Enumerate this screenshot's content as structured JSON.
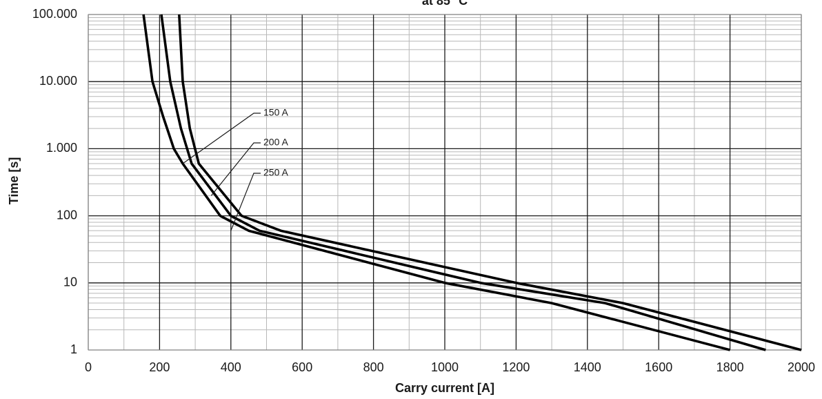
{
  "chart_data": {
    "type": "line",
    "title": "at 85 °C",
    "xlabel": "Carry current [A]",
    "ylabel": "Time [s]",
    "xlim": [
      0,
      2000
    ],
    "ylim": [
      1,
      100000
    ],
    "yscale": "log",
    "x_ticks": [
      "0",
      "200",
      "400",
      "600",
      "800",
      "1000",
      "1200",
      "1400",
      "1600",
      "1800",
      "2000"
    ],
    "y_ticks": [
      {
        "value": 1,
        "label": "1"
      },
      {
        "value": 10,
        "label": "10"
      },
      {
        "value": 100,
        "label": "100"
      },
      {
        "value": 1000,
        "label": "1.000"
      },
      {
        "value": 10000,
        "label": "10.000"
      },
      {
        "value": 100000,
        "label": "100.000"
      }
    ],
    "grid": true,
    "series": [
      {
        "name": "150 A",
        "x": [
          155,
          180,
          210,
          240,
          265,
          370,
          450,
          1000,
          1300,
          1800
        ],
        "y": [
          100000,
          10000,
          3000,
          1000,
          600,
          100,
          60,
          10,
          5,
          1
        ]
      },
      {
        "name": "200 A",
        "x": [
          205,
          230,
          260,
          290,
          400,
          480,
          1100,
          1450,
          1900
        ],
        "y": [
          100000,
          10000,
          2000,
          600,
          100,
          60,
          10,
          5,
          1
        ]
      },
      {
        "name": "250 A",
        "x": [
          255,
          265,
          285,
          310,
          430,
          540,
          1200,
          1500,
          2000
        ],
        "y": [
          100000,
          10000,
          2000,
          600,
          100,
          60,
          10,
          5,
          1
        ]
      }
    ],
    "annotations": [
      {
        "text": "150 A",
        "target": [
          265,
          600
        ]
      },
      {
        "text": "200 A",
        "target": [
          345,
          200
        ]
      },
      {
        "text": "250 A",
        "target": [
          400,
          60
        ]
      }
    ]
  }
}
